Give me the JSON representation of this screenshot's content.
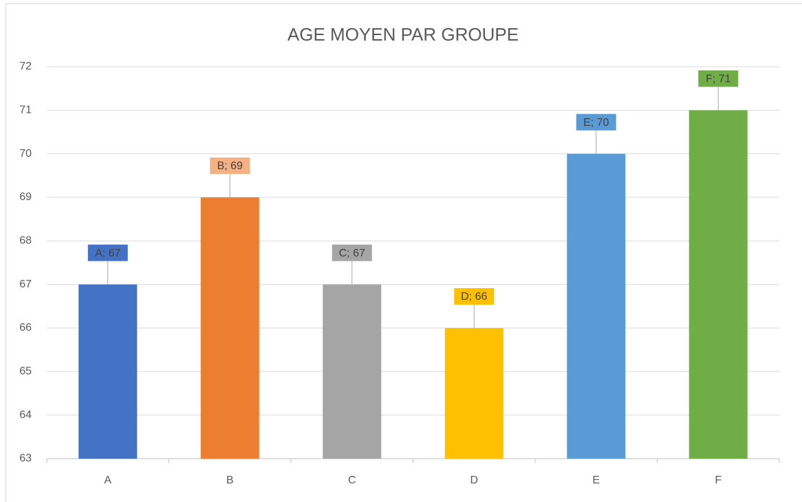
{
  "chart_data": {
    "type": "bar",
    "title": "AGE MOYEN PAR GROUPE",
    "categories": [
      "A",
      "B",
      "C",
      "D",
      "E",
      "F"
    ],
    "values": [
      67,
      69,
      67,
      66,
      70,
      71
    ],
    "value_labels": [
      "A; 67",
      "B; 69",
      "C; 67",
      "D; 66",
      "E; 70",
      "F; 71"
    ],
    "colors": [
      "#4472c4",
      "#ed7d31",
      "#a5a5a5",
      "#ffc000",
      "#5b9bd5",
      "#70ad47"
    ],
    "label_colors": [
      "#4472c4",
      "#f4b183",
      "#a5a5a5",
      "#ffc000",
      "#5b9bd5",
      "#70ad47"
    ],
    "ylim": [
      63,
      72
    ],
    "yticks": [
      63,
      64,
      65,
      66,
      67,
      68,
      69,
      70,
      71,
      72
    ],
    "grid": true
  }
}
